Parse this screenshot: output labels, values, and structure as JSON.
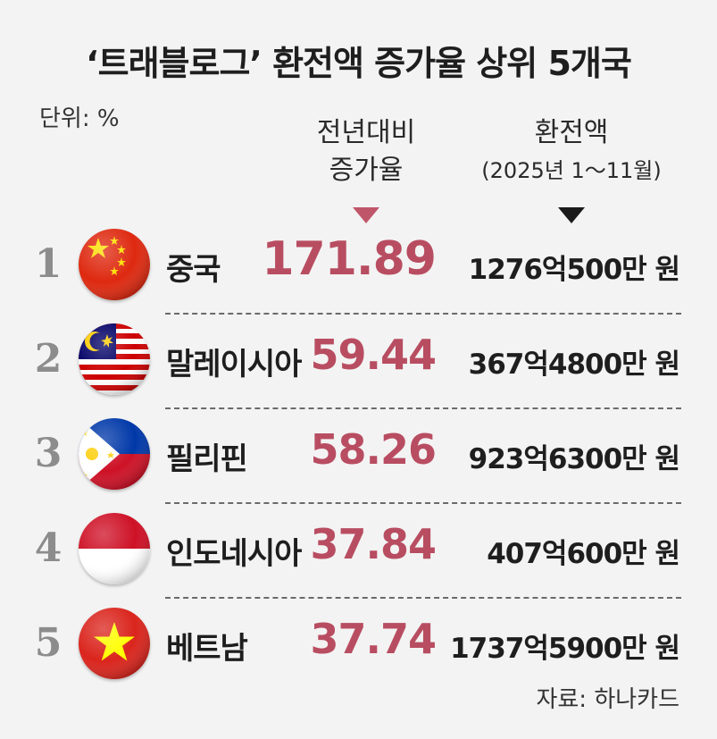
{
  "title": "‘트래블로그’ 환전액 증가율 상위 5개국",
  "unit_label": "단위: %",
  "columns": {
    "rate_line1": "전년대비",
    "rate_line2": "증가율",
    "amount_line1": "환전액",
    "amount_line2": "(2025년 1～11월)"
  },
  "source": "자료: 하나카드",
  "colors": {
    "rate": "#b84d61",
    "amount": "#1e1e1e",
    "rank": "#8c8c8c"
  },
  "chart_data": {
    "type": "table",
    "title": "‘트래블로그’ 환전액 증가율 상위 5개국",
    "rows": [
      {
        "rank": "1",
        "country": "중국",
        "flag_icon": "china-flag-icon",
        "rate": "171.89",
        "amount": "1276억500만 원"
      },
      {
        "rank": "2",
        "country": "말레이시아",
        "flag_icon": "malaysia-flag-icon",
        "rate": "59.44",
        "amount": "367억4800만 원"
      },
      {
        "rank": "3",
        "country": "필리핀",
        "flag_icon": "philippines-flag-icon",
        "rate": "58.26",
        "amount": "923억6300만 원"
      },
      {
        "rank": "4",
        "country": "인도네시아",
        "flag_icon": "indonesia-flag-icon",
        "rate": "37.84",
        "amount": "407억600만 원"
      },
      {
        "rank": "5",
        "country": "베트남",
        "flag_icon": "vietnam-flag-icon",
        "rate": "37.74",
        "amount": "1737억5900만 원"
      }
    ]
  }
}
